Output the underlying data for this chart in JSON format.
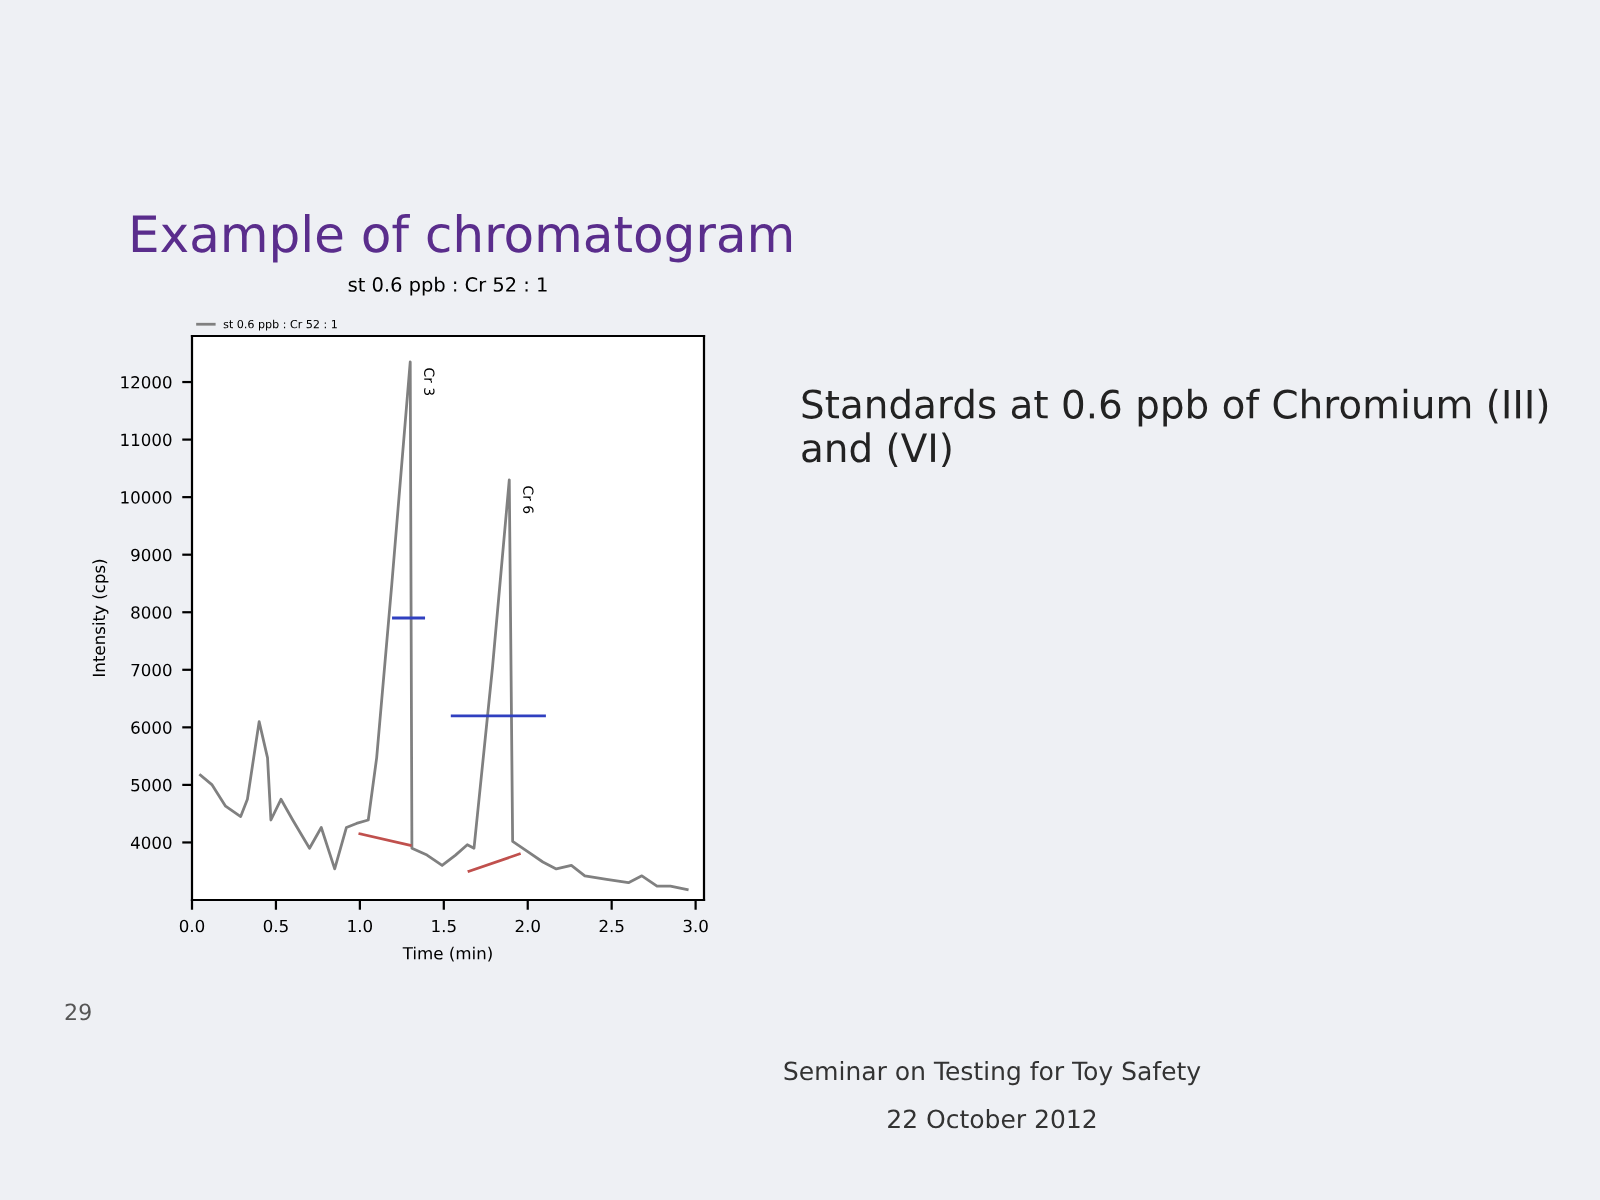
{
  "chart_data": {
    "type": "line",
    "title": "Example of chromatogram",
    "subtitle": "st 0.6 ppb : Cr 52 : 1",
    "xlabel": "Time (min)",
    "ylabel": "Intensity (cps)",
    "series": [
      {
        "name": "st 0.6 ppb : Cr 52 : 1",
        "color": "#808080",
        "x": [
          0.05,
          0.12,
          0.2,
          0.29,
          0.33,
          0.4,
          0.45,
          0.47,
          0.53,
          0.6,
          0.7,
          0.77,
          0.85,
          0.92,
          0.98,
          1.05,
          1.1,
          1.19,
          1.3,
          1.31,
          1.4,
          1.49,
          1.57,
          1.64,
          1.68,
          1.79,
          1.89,
          1.91,
          2.0,
          2.09,
          2.17,
          2.26,
          2.34,
          2.47,
          2.6,
          2.68,
          2.77,
          2.85,
          2.95
        ],
        "values": [
          5170,
          5000,
          4630,
          4450,
          4750,
          6100,
          5470,
          4390,
          4750,
          4390,
          3900,
          4260,
          3540,
          4260,
          4330,
          4390,
          5470,
          8480,
          12350,
          3900,
          3780,
          3600,
          3780,
          3960,
          3900,
          7040,
          10300,
          4020,
          3840,
          3660,
          3540,
          3600,
          3420,
          3360,
          3300,
          3420,
          3240,
          3240,
          3180
        ]
      },
      {
        "color": "#c0504d",
        "x": [
          1.0,
          1.3
        ],
        "values": [
          4150,
          3950
        ]
      },
      {
        "color": "#c0504d",
        "x": [
          1.65,
          1.95
        ],
        "values": [
          3500,
          3800
        ]
      },
      {
        "color": "#3040c0",
        "x": [
          1.2,
          1.38
        ],
        "values": [
          7900,
          7900
        ]
      },
      {
        "color": "#3040c0",
        "x": [
          1.55,
          2.1
        ],
        "values": [
          6200,
          6200
        ]
      }
    ],
    "xlim": [
      0,
      3.05
    ],
    "ylim": [
      3000,
      12800
    ],
    "xticks": [
      {
        "value": 0,
        "label": "0.0"
      },
      {
        "value": 0.5,
        "label": "0.5"
      },
      {
        "value": 1,
        "label": "1.0"
      },
      {
        "value": 1.5,
        "label": "1.5"
      },
      {
        "value": 2,
        "label": "2.0"
      },
      {
        "value": 2.5,
        "label": "2.5"
      },
      {
        "value": 3,
        "label": "3.0"
      }
    ],
    "yticks": [
      4000,
      5000,
      6000,
      7000,
      8000,
      9000,
      10000,
      11000,
      12000
    ],
    "grid": false,
    "legend": "top left",
    "marker": "none",
    "line_style": "solid",
    "annotations": [
      {
        "text": "Cr 3",
        "x": 1.3,
        "y": 12350
      },
      {
        "text": "Cr 6",
        "x": 1.89,
        "y": 10300
      },
      "Standards at 0.6 ppb of Chromium (III) and (VI)",
      "29",
      "Seminar on Testing for Toy Safety",
      "22 October 2012"
    ]
  }
}
